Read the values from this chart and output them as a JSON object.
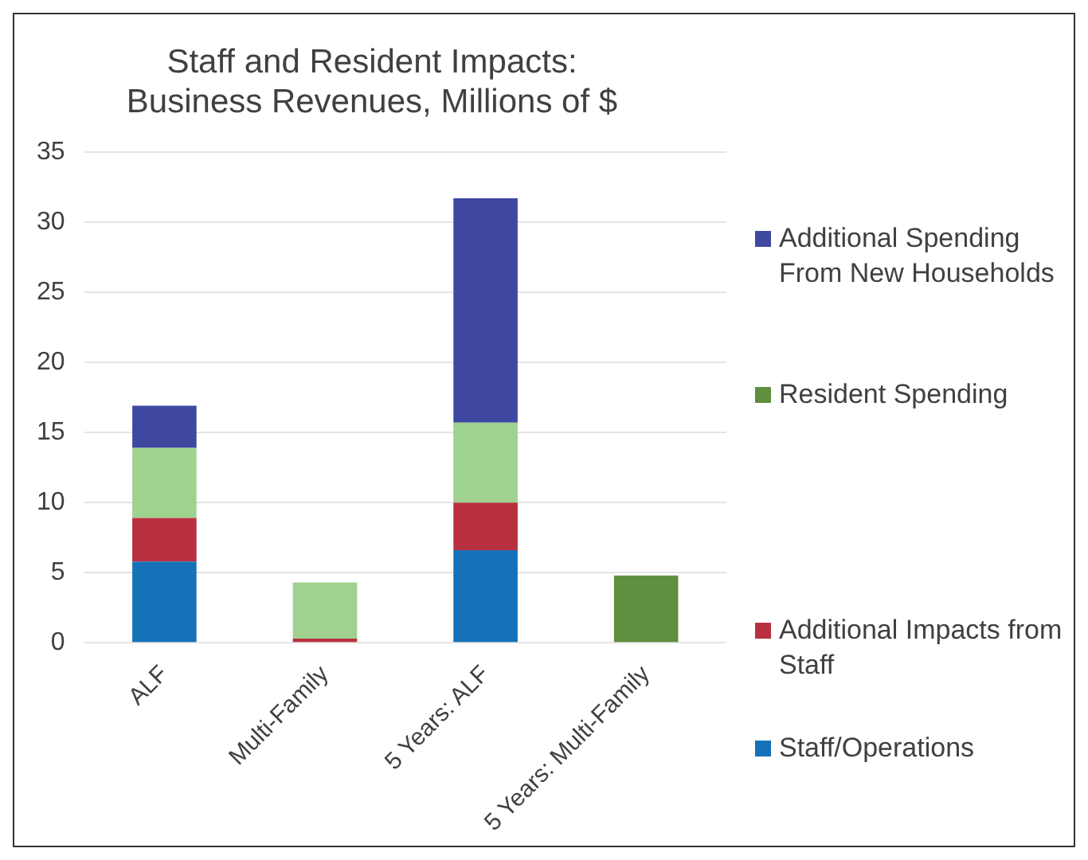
{
  "chart_data": {
    "type": "bar",
    "title": "Staff and Resident Impacts:\nBusiness Revenues, Millions of $",
    "categories": [
      "ALF",
      "Multi-Family",
      "5 Years: ALF",
      "5 Years: Multi-Family"
    ],
    "stacked": true,
    "ylim": [
      0,
      35
    ],
    "yticks": [
      0,
      5,
      10,
      15,
      20,
      25,
      30,
      35
    ],
    "grid": "y",
    "legend": "right",
    "series": [
      {
        "name": "Staff/Operations",
        "color": "#1672b8",
        "values": [
          5.8,
          null,
          6.6,
          null
        ]
      },
      {
        "name": "Additional Impacts from Staff",
        "color": "#b8303f",
        "values": [
          3.1,
          0.3,
          3.4,
          null
        ]
      },
      {
        "color": "#9fd18f",
        "values": [
          5.0,
          4.0,
          5.7,
          null
        ]
      },
      {
        "name": "Resident Spending",
        "color": "#5f8f3f",
        "values": [
          null,
          null,
          null,
          4.8
        ]
      },
      {
        "name": "Additional Spending From New Households",
        "color": "#3f48a0",
        "values": [
          3.0,
          null,
          16.0,
          null
        ]
      }
    ]
  }
}
